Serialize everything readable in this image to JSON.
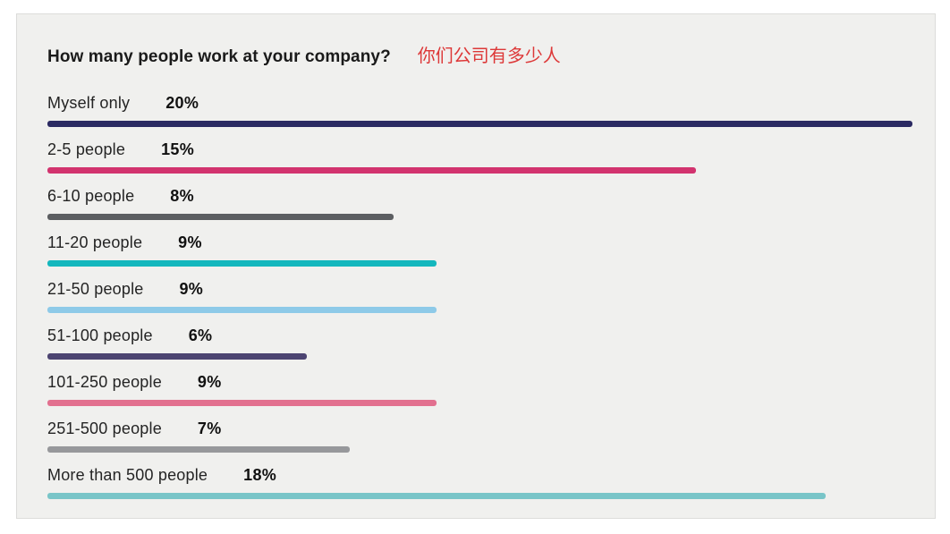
{
  "header": {
    "title": "How many people work at your company?",
    "title_cn": "你们公司有多少人",
    "title_color": "#1a1a1a",
    "title_cn_color": "#dd3838"
  },
  "chart_data": {
    "type": "bar",
    "orientation": "horizontal",
    "title": "How many people work at your company?",
    "title_cn": "你们公司有多少人",
    "categories": [
      "Myself only",
      "2-5 people",
      "6-10 people",
      "11-20 people",
      "21-50 people",
      "51-100 people",
      "101-250 people",
      "251-500 people",
      "More than 500 people"
    ],
    "values": [
      20,
      15,
      8,
      9,
      9,
      6,
      9,
      7,
      18
    ],
    "value_labels": [
      "20%",
      "15%",
      "8%",
      "9%",
      "9%",
      "6%",
      "9%",
      "7%",
      "18%"
    ],
    "bar_colors": [
      "#2b2a62",
      "#d2336e",
      "#5c5e61",
      "#14b7bd",
      "#8ecae8",
      "#4c4471",
      "#e2708f",
      "#97989b",
      "#79c5c8"
    ],
    "xlim": [
      0,
      20
    ],
    "grid": false,
    "legend": false,
    "background_color": "#f0f0ee"
  }
}
